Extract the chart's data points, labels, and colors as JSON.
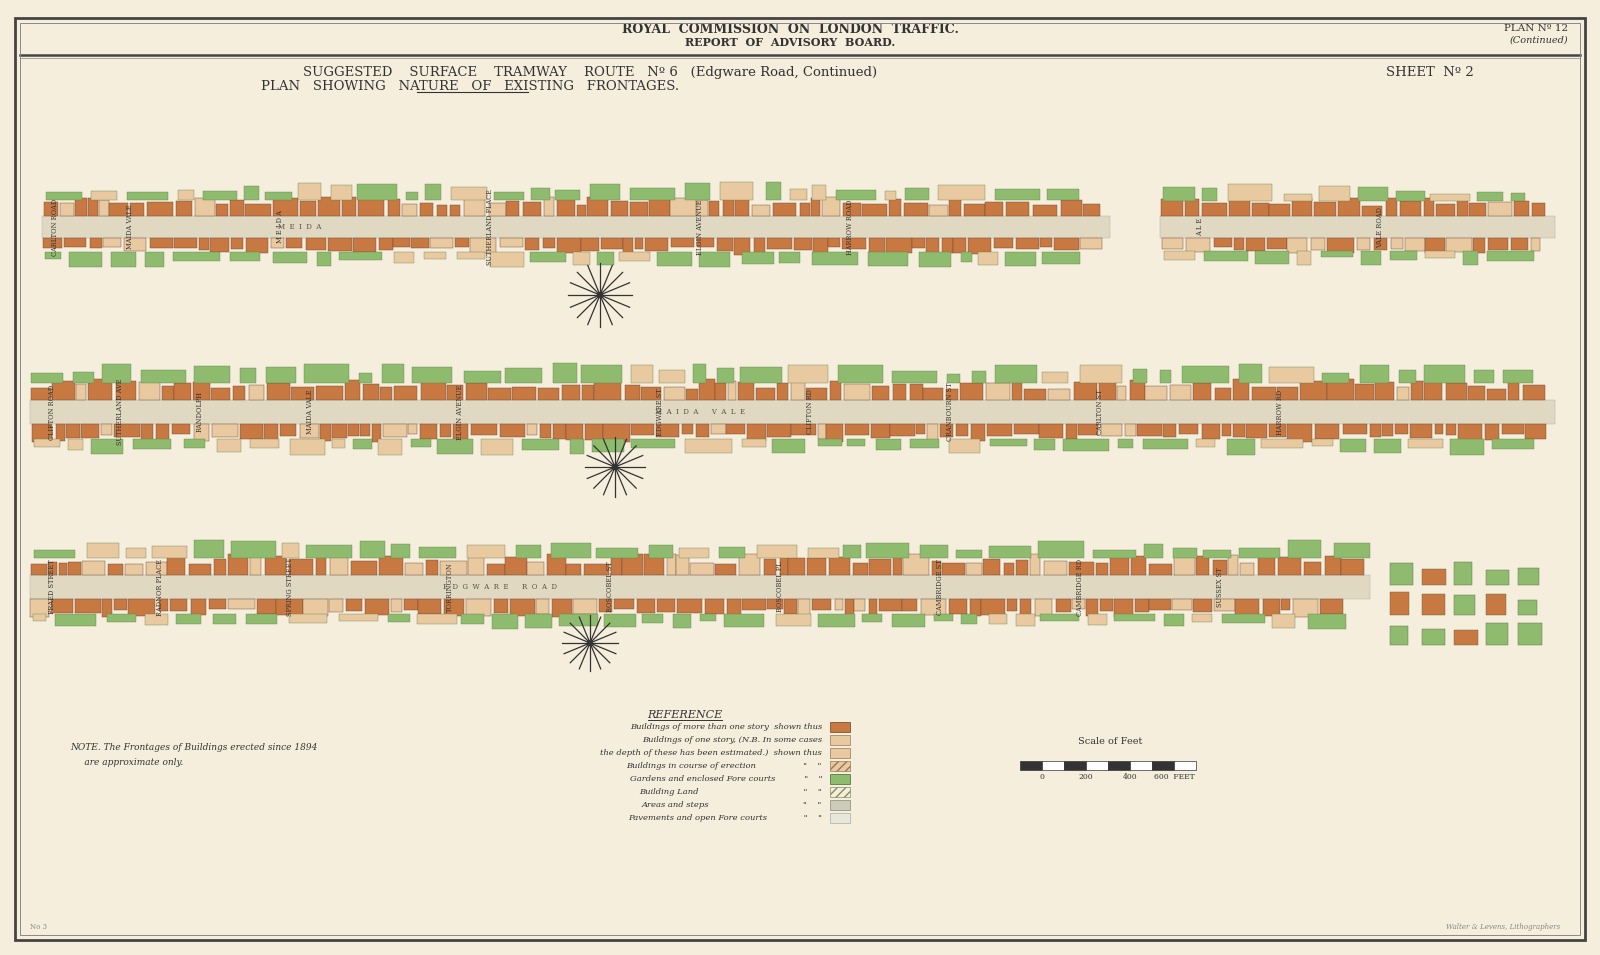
{
  "bg_color": "#f5eedc",
  "border_color": "#555555",
  "title_top": "ROYAL  COMMISSION  ON  LONDON  TRAFFIC.",
  "title_top2": "REPORT  OF  ADVISORY  BOARD.",
  "plan_no": "PLAN Nº 12",
  "plan_continued": "(Continued)",
  "sheet_no": "SHEET  Nº 2",
  "subtitle1": "SUGGESTED    SURFACE    TRAMWAY    ROUTE   Nº 6   (Edgware Road, Continued)",
  "subtitle2": "PLAN   SHOWING   NATURE   OF   EXISTING   FRONTAGES.",
  "note_text": "NOTE. The Frontages of Buildings erected since 1894\n     are approximate only.",
  "reference_title": "REFERENCE",
  "scale_label": "Scale of Feet",
  "map_road_color": "#e0d8c0",
  "map_building_color": "#c87941",
  "map_garden_color": "#8fbb6e",
  "map_light_building_color": "#e8c9a0",
  "ref_labels": [
    "Buildings of more than one story  shown thus",
    "Buildings of one story, (N.B. In some cases",
    "the depth of these has been estimated.)  shown thus",
    "Buildings in course of erection",
    "Gardens and enclosed Fore courts",
    "Building Land",
    "Areas and steps",
    "Pavements and open Fore courts"
  ],
  "ref_colors": [
    "#c87941",
    "#e8c9a0",
    "#e8c9a0",
    "#8fbb6e",
    "#ffffff",
    "#ccccbb",
    "#e8e8d8"
  ],
  "ref_hatches": [
    null,
    null,
    null,
    "////",
    null,
    "////",
    null,
    null
  ]
}
